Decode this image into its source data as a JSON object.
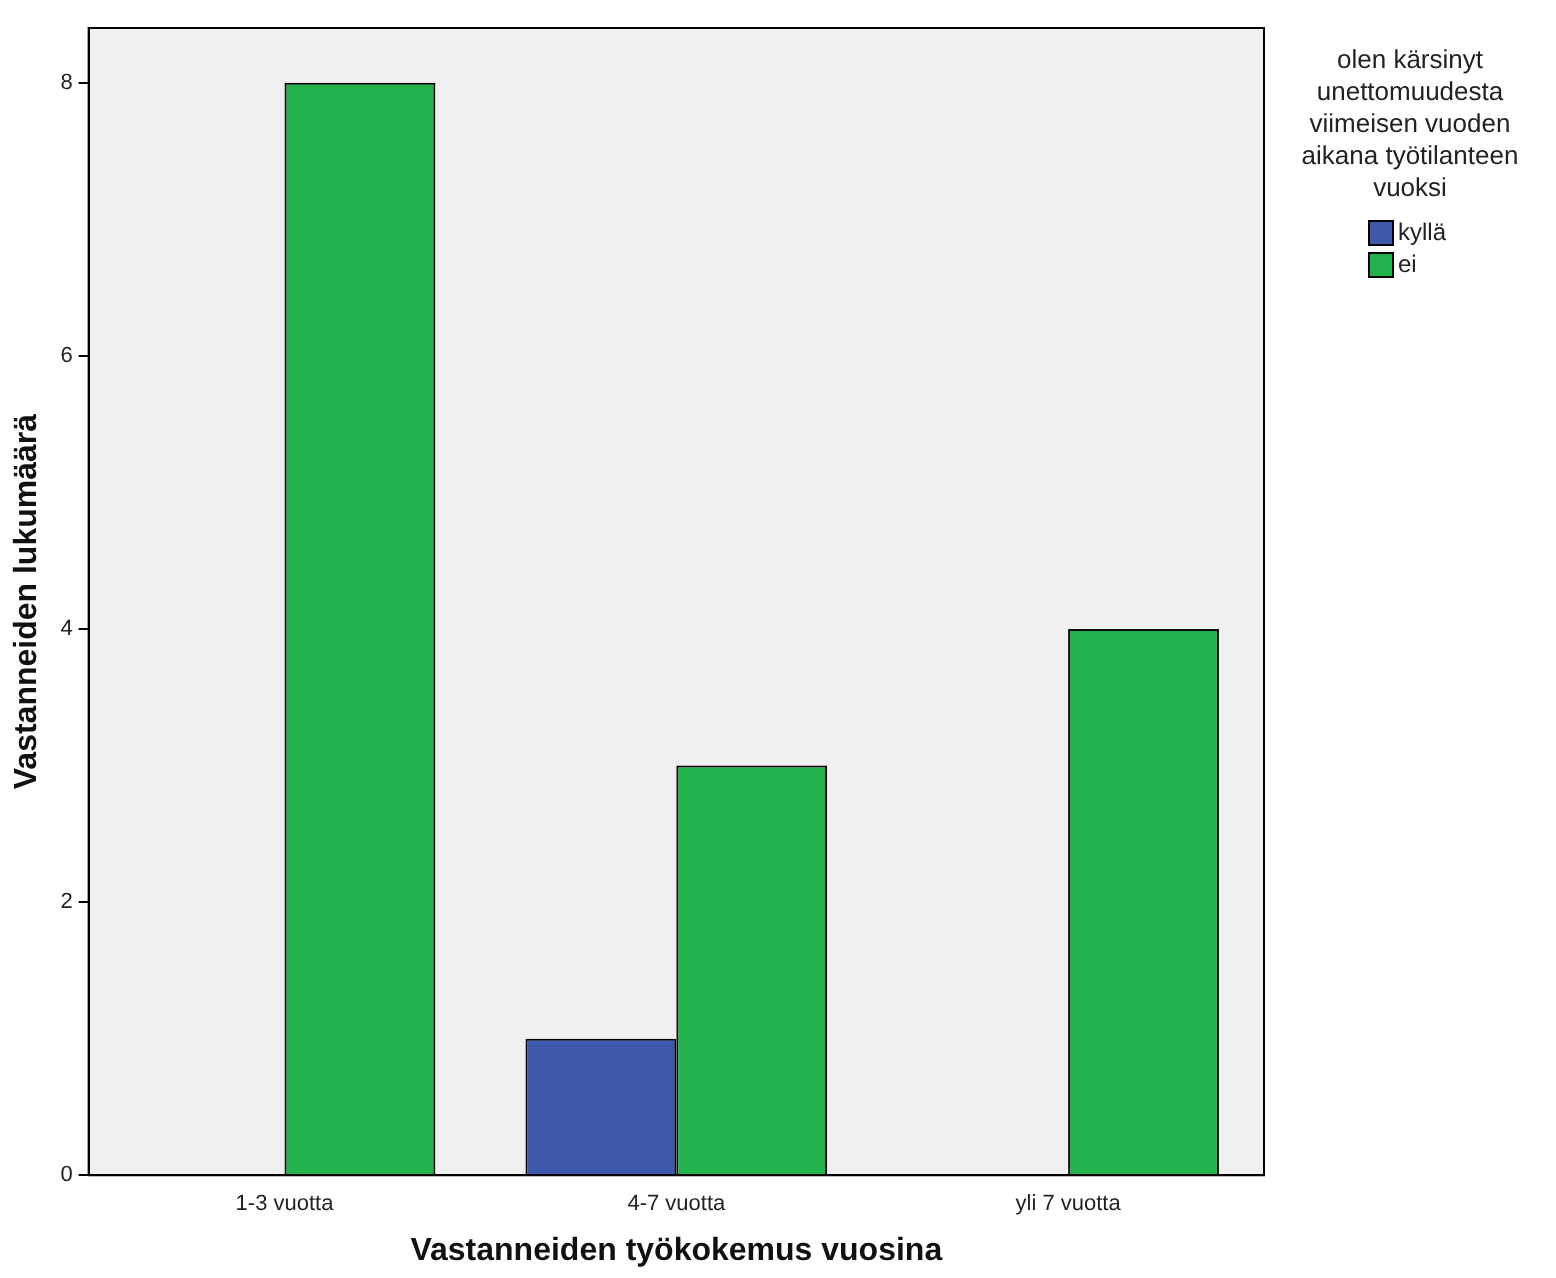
{
  "chart_data": {
    "type": "bar",
    "xlabel": "Vastanneiden työkokemus vuosina",
    "ylabel": "Vastanneiden lukumäärä",
    "legend_title": "olen kärsinyt unettomuudesta viimeisen vuoden aikana työtilanteen vuoksi",
    "categories": [
      "1-3 vuotta",
      "4-7 vuotta",
      "yli 7 vuotta"
    ],
    "series": [
      {
        "name": "kyllä",
        "color": "#3e58ac",
        "values": [
          0,
          1,
          0
        ]
      },
      {
        "name": "ei",
        "color": "#21b24b",
        "values": [
          8,
          3,
          4
        ]
      }
    ],
    "ylim": [
      0,
      8.4
    ],
    "yticks": [
      0,
      2,
      4,
      6,
      8
    ],
    "grid": false,
    "legend": "right"
  }
}
